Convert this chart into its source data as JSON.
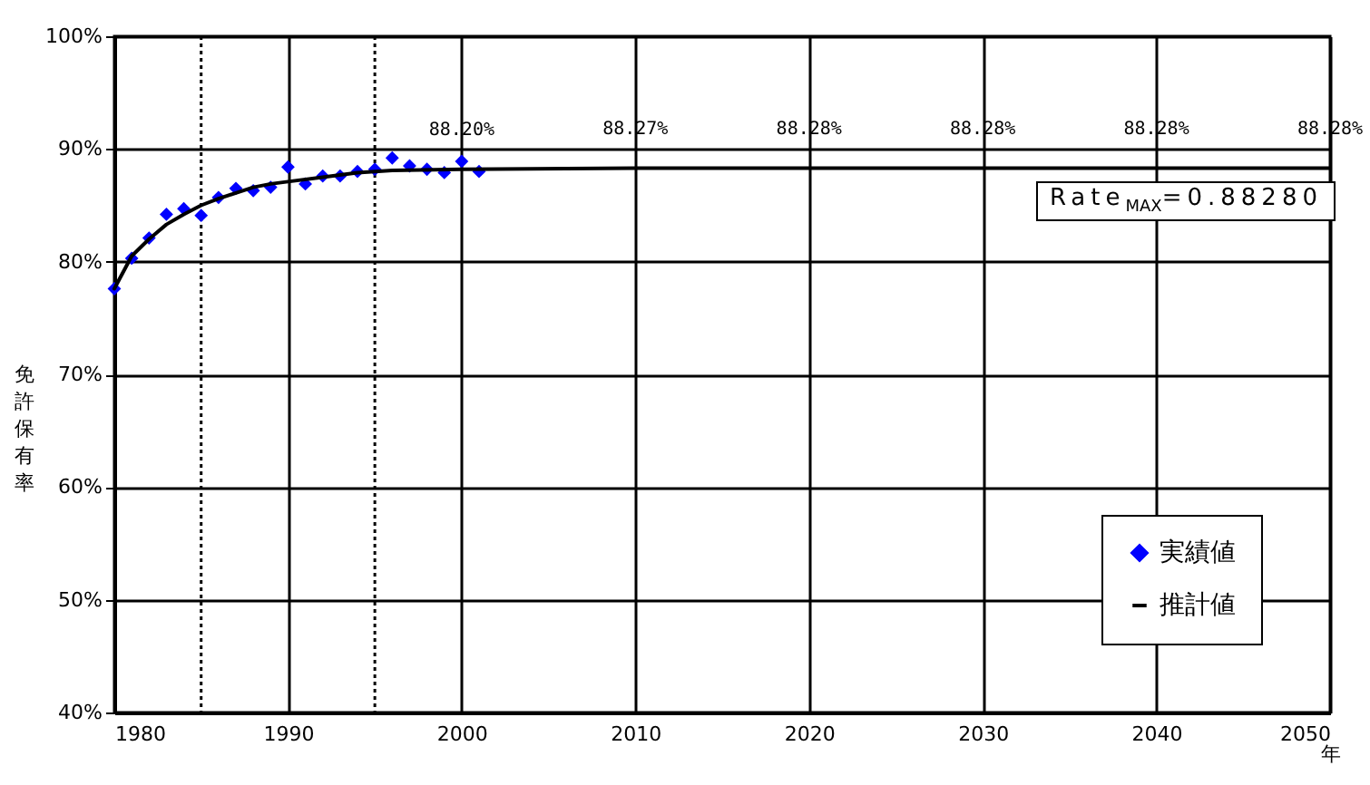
{
  "chart_data": {
    "type": "scatter",
    "xlabel": "年",
    "ylabel": "免許保有率",
    "xlim": [
      1980,
      2050
    ],
    "xticks": [
      1980,
      1990,
      2000,
      2010,
      2020,
      2030,
      2040,
      2050
    ],
    "ylim": [
      40,
      100
    ],
    "yticks": [
      {
        "value": 40,
        "label": "40%"
      },
      {
        "value": 50,
        "label": "50%"
      },
      {
        "value": 60,
        "label": "60%"
      },
      {
        "value": 70,
        "label": "70%"
      },
      {
        "value": 80,
        "label": "80%"
      },
      {
        "value": 90,
        "label": "90%"
      },
      {
        "value": 100,
        "label": "100%"
      }
    ],
    "grid": true,
    "legend": "bottom right",
    "series": [
      {
        "name": "実績値",
        "marker": "diamond",
        "color": "#0000ff",
        "x": [
          1980,
          1981,
          1982,
          1983,
          1984,
          1985,
          1986,
          1987,
          1988,
          1989,
          1990,
          1991,
          1992,
          1993,
          1994,
          1995,
          1996,
          1997,
          1998,
          1999,
          2000,
          2001
        ],
        "values": [
          77.6,
          80.3,
          82.1,
          84.2,
          84.7,
          84.1,
          85.7,
          86.5,
          86.3,
          86.6,
          88.4,
          86.9,
          87.6,
          87.6,
          88.0,
          88.2,
          89.2,
          88.5,
          88.2,
          87.9,
          88.9,
          88.0
        ]
      },
      {
        "name": "推計値",
        "type": "line",
        "color": "#000000",
        "x": [
          1980,
          1981,
          1982,
          1983,
          1984,
          1985,
          1986,
          1987,
          1988,
          1989,
          1990,
          1992,
          1994,
          1996,
          2000,
          2010,
          2020,
          2030,
          2040,
          2050
        ],
        "values": [
          77.6,
          80.5,
          82.0,
          83.3,
          84.2,
          85.0,
          85.6,
          86.1,
          86.6,
          86.9,
          87.1,
          87.5,
          87.9,
          88.1,
          88.2,
          88.3,
          88.3,
          88.3,
          88.3,
          88.3
        ]
      }
    ],
    "ref_lines": [
      {
        "axis": "x",
        "value": 1985,
        "line_style": "dotted"
      },
      {
        "axis": "x",
        "value": 1995,
        "line_style": "dotted"
      }
    ],
    "annotations": [
      {
        "text": "88.20%",
        "x": 2000,
        "y": 88.2
      },
      {
        "text": "88.27%",
        "x": 2010,
        "y": 88.27
      },
      {
        "text": "88.28%",
        "x": 2020,
        "y": 88.28
      },
      {
        "text": "88.28%",
        "x": 2030,
        "y": 88.28
      },
      {
        "text": "88.28%",
        "x": 2040,
        "y": 88.28
      },
      {
        "text": "88.28%",
        "x": 2050,
        "y": 88.28
      },
      "Rate$_{MAX}$=0.88280"
    ]
  }
}
